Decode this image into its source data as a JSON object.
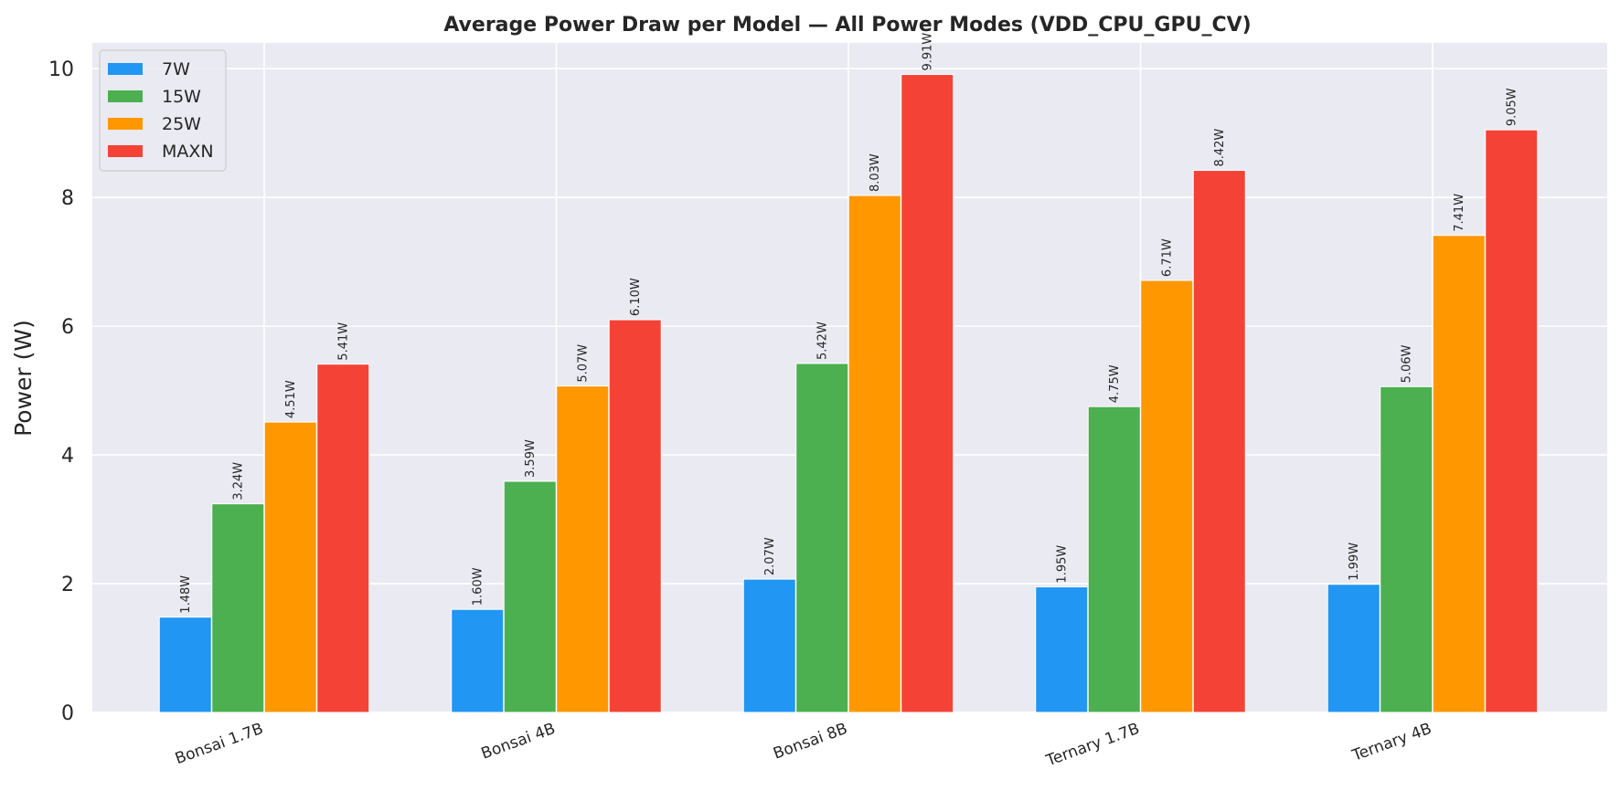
{
  "chart_data": {
    "type": "bar",
    "title": "Average Power Draw per Model — All Power Modes (VDD_CPU_GPU_CV)",
    "xlabel": "",
    "ylabel": "Power (W)",
    "ylim": [
      0,
      10.4
    ],
    "yticks": [
      0,
      2,
      4,
      6,
      8,
      10
    ],
    "grid": true,
    "legend_position": "top-left",
    "categories": [
      "Bonsai 1.7B",
      "Bonsai 4B",
      "Bonsai 8B",
      "Ternary 1.7B",
      "Ternary 4B"
    ],
    "series": [
      {
        "name": "7W",
        "color": "#2196F3",
        "values": [
          1.48,
          1.6,
          2.07,
          1.95,
          1.99
        ],
        "labels": [
          "1.48W",
          "1.60W",
          "2.07W",
          "1.95W",
          "1.99W"
        ]
      },
      {
        "name": "15W",
        "color": "#4CAF50",
        "values": [
          3.24,
          3.59,
          5.42,
          4.75,
          5.06
        ],
        "labels": [
          "3.24W",
          "3.59W",
          "5.42W",
          "4.75W",
          "5.06W"
        ]
      },
      {
        "name": "25W",
        "color": "#FF9800",
        "values": [
          4.51,
          5.07,
          8.03,
          6.71,
          7.41
        ],
        "labels": [
          "4.51W",
          "5.07W",
          "8.03W",
          "6.71W",
          "7.41W"
        ]
      },
      {
        "name": "MAXN",
        "color": "#F44336",
        "values": [
          5.41,
          6.1,
          9.91,
          8.42,
          9.05
        ],
        "labels": [
          "5.41W",
          "6.10W",
          "9.91W",
          "8.42W",
          "9.05W"
        ]
      }
    ],
    "colors": {
      "plot_background": "#EAEAF2",
      "grid": "#FFFFFF",
      "text": "#262626"
    }
  }
}
